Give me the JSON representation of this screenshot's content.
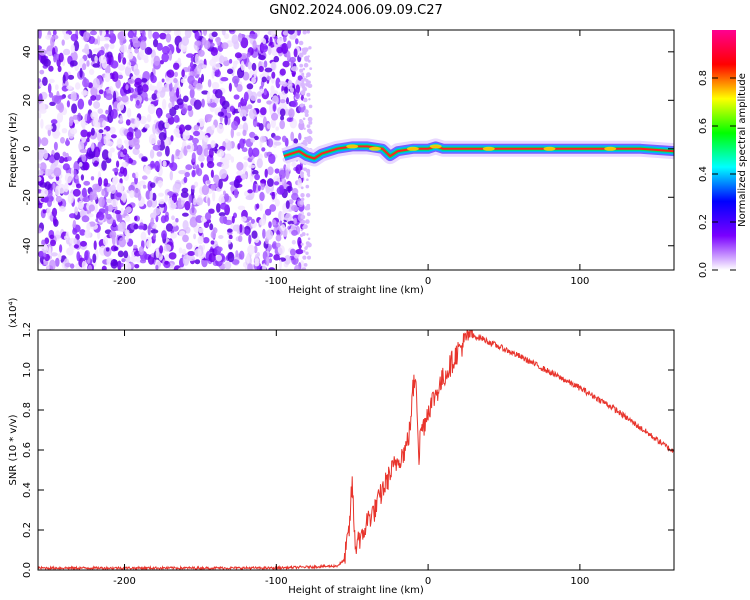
{
  "figure": {
    "title": "GN02.2024.006.09.09.C27"
  },
  "chart_data": [
    {
      "type": "heatmap",
      "title": "GN02.2024.006.09.09.C27",
      "xlabel": "Height of straight line (km)",
      "ylabel": "Frequency (Hz)",
      "xlim": [
        -257,
        162
      ],
      "ylim": [
        -50,
        49
      ],
      "x_ticks": [
        -200,
        -100,
        0,
        100
      ],
      "x_tick_labels": [
        "-200",
        "-100",
        "0",
        "100"
      ],
      "y_ticks": [
        -40,
        -20,
        0,
        20,
        40
      ],
      "y_tick_labels": [
        "-40",
        "-20",
        "0",
        "20",
        "40"
      ],
      "colorbar": {
        "label": "Normalized spectral amplitude",
        "range": [
          0,
          1
        ],
        "ticks": [
          0.0,
          0.2,
          0.4,
          0.6,
          0.8
        ],
        "tick_labels": [
          "0.0",
          "0.2",
          "0.4",
          "0.6",
          "0.8"
        ],
        "colors": [
          "#ffffff",
          "#7a00ff",
          "#0000ff",
          "#00ffff",
          "#00ff00",
          "#ffff00",
          "#ff0000",
          "#ff0090"
        ]
      },
      "noise_region_x": [
        -257,
        -80
      ],
      "signal_ridge": {
        "x": [
          -95,
          -85,
          -80,
          -75,
          -70,
          -60,
          -50,
          -40,
          -30,
          -25,
          -20,
          -10,
          0,
          5,
          10,
          20,
          40,
          60,
          80,
          100,
          120,
          140,
          162
        ],
        "frequency": [
          -3,
          -1,
          -3,
          -4,
          -2,
          0,
          1,
          1,
          0,
          -3,
          -1,
          0,
          0,
          1,
          0,
          0,
          0,
          0,
          0,
          0,
          0,
          0,
          -1
        ]
      },
      "grid": false
    },
    {
      "type": "line",
      "xlabel": "Height of straight line (km)",
      "ylabel": "SNR (10 * v/v)",
      "y_multiplier": "(x10⁴)",
      "xlim": [
        -257,
        162
      ],
      "ylim": [
        0,
        1.2
      ],
      "x_ticks": [
        -200,
        -100,
        0,
        100
      ],
      "x_tick_labels": [
        "-200",
        "-100",
        "0",
        "100"
      ],
      "y_ticks": [
        0.0,
        0.2,
        0.4,
        0.6,
        0.8,
        1.0,
        1.2
      ],
      "y_tick_labels": [
        "0.0",
        "0.2",
        "0.4",
        "0.6",
        "0.8",
        "1.0",
        "1.2"
      ],
      "series": [
        {
          "color": "#e8342c",
          "x": [
            -257,
            -200,
            -150,
            -100,
            -60,
            -55,
            -52,
            -50,
            -48,
            -46,
            -44,
            -42,
            -40,
            -35,
            -30,
            -25,
            -20,
            -15,
            -12,
            -10,
            -8,
            -6,
            -5,
            -3,
            0,
            5,
            10,
            15,
            20,
            25,
            28,
            30,
            35,
            40,
            60,
            80,
            100,
            120,
            140,
            162
          ],
          "y": [
            0.01,
            0.01,
            0.01,
            0.01,
            0.02,
            0.05,
            0.2,
            0.44,
            0.1,
            0.18,
            0.14,
            0.2,
            0.25,
            0.3,
            0.4,
            0.48,
            0.55,
            0.6,
            0.7,
            0.9,
            0.98,
            0.55,
            0.7,
            0.72,
            0.8,
            0.88,
            0.96,
            1.03,
            1.1,
            1.15,
            1.2,
            1.17,
            1.16,
            1.14,
            1.07,
            0.99,
            0.91,
            0.82,
            0.71,
            0.59
          ]
        }
      ],
      "grid": false
    }
  ]
}
